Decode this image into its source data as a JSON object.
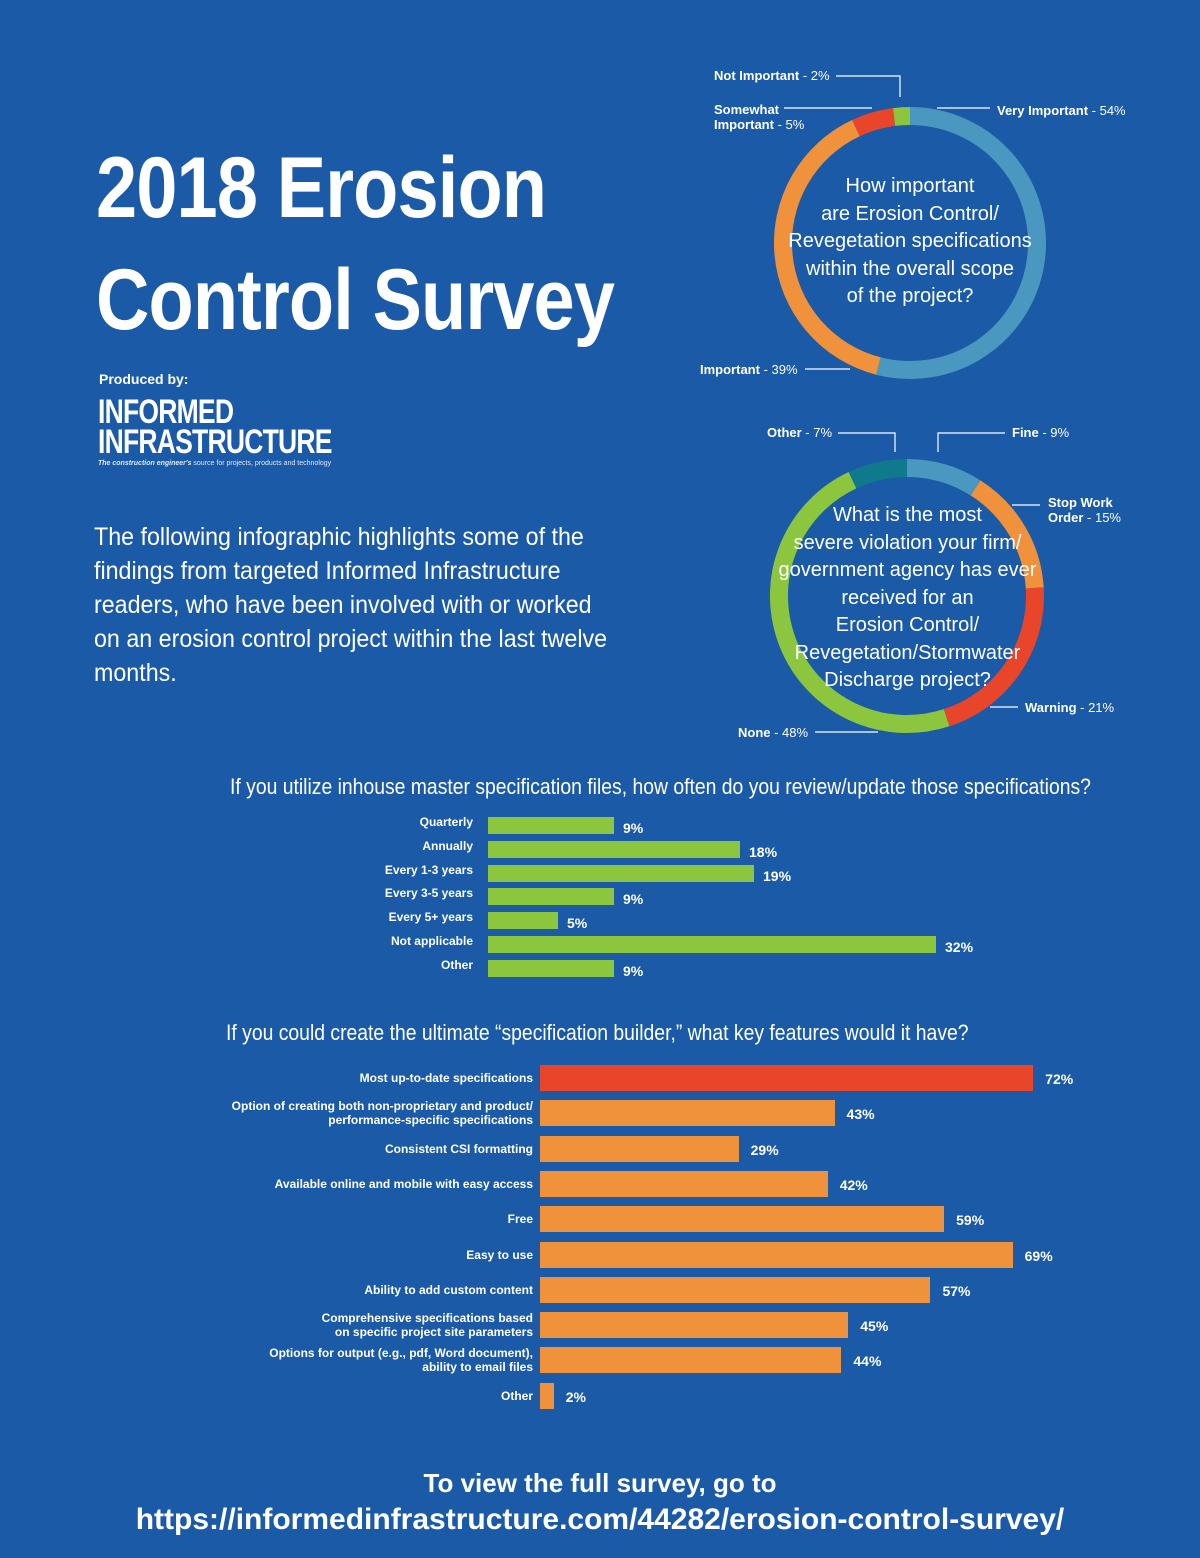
{
  "header": {
    "title_line1": "2018 Erosion",
    "title_line2": "Control Survey",
    "produced_by": "Produced by:",
    "logo_line1": "INFORMED",
    "logo_line2": "INFRASTRUCTURE",
    "logo_tagline_bold": "The construction engineer's",
    "logo_tagline_rest": " source for projects, products and technology"
  },
  "intro": "The following infographic highlights some of the findings from targeted Informed Infrastructure readers, who have been involved with or worked on an erosion control project within the last twelve months.",
  "footer": {
    "line1": "To view the full survey, go to",
    "url": "https://informedinfrastructure.com/44282/erosion-control-survey/"
  },
  "chart_data": [
    {
      "type": "pie",
      "question_lines": [
        "How important",
        "are Erosion Control/",
        "Revegetation specifications",
        "within the overall scope",
        "of the project?"
      ],
      "slices": [
        {
          "label": "Very Important",
          "value": 54,
          "display": " - 54%",
          "color": "#4a97bf"
        },
        {
          "label": "Important",
          "value": 39,
          "display": " - 39%",
          "color": "#f0913c"
        },
        {
          "label_lines": [
            "Somewhat",
            "Important"
          ],
          "value": 5,
          "display": " - 5%",
          "color": "#e8452b"
        },
        {
          "label": "Not Important",
          "value": 2,
          "display": " - 2%",
          "color": "#8cc63f"
        }
      ]
    },
    {
      "type": "pie",
      "question_lines": [
        "What is the most",
        "severe violation your firm/",
        "government agency has ever",
        "received for an",
        "Erosion Control/",
        "Revegetation/Stormwater",
        "Discharge project?"
      ],
      "slices": [
        {
          "label": "Fine",
          "value": 9,
          "display": " - 9%",
          "color": "#4a97bf"
        },
        {
          "label_lines": [
            "Stop Work",
            "Order"
          ],
          "value": 15,
          "display": " - 15%",
          "color": "#f0913c"
        },
        {
          "label": "Warning",
          "value": 21,
          "display": " - 21%",
          "color": "#e8452b"
        },
        {
          "label": "None",
          "value": 48,
          "display": " - 48%",
          "color": "#8cc63f"
        },
        {
          "label": "Other",
          "value": 7,
          "display": " - 7%",
          "color": "#0e7a8c"
        }
      ]
    },
    {
      "type": "bar",
      "title": "If you utilize inhouse master specification files, how often do you review/update those specifications?",
      "categories": [
        "Quarterly",
        "Annually",
        "Every 1-3 years",
        "Every 3-5 years",
        "Every 5+ years",
        "Not applicable",
        "Other"
      ],
      "values": [
        9,
        18,
        19,
        9,
        5,
        32,
        9
      ],
      "value_labels": [
        "9%",
        "18%",
        "19%",
        "9%",
        "5%",
        "32%",
        "9%"
      ],
      "color": "#8cc63f"
    },
    {
      "type": "bar",
      "title": "If you could create the ultimate “specification builder,” what key features would it have?",
      "categories": [
        [
          "Most up-to-date specifications"
        ],
        [
          "Option of creating both non-proprietary and product/",
          "performance-specific specifications"
        ],
        [
          "Consistent CSI formatting"
        ],
        [
          "Available online and mobile with easy access"
        ],
        [
          "Free"
        ],
        [
          "Easy to use"
        ],
        [
          "Ability to add custom content"
        ],
        [
          "Comprehensive specifications based",
          "on specific project site parameters"
        ],
        [
          "Options for output (e.g., pdf, Word document),",
          "ability to email files"
        ],
        [
          "Other"
        ]
      ],
      "values": [
        72,
        43,
        29,
        42,
        59,
        69,
        57,
        45,
        44,
        2
      ],
      "value_labels": [
        "72%",
        "43%",
        "29%",
        "42%",
        "59%",
        "69%",
        "57%",
        "45%",
        "44%",
        "2%"
      ],
      "color": "#f0913c",
      "highlight_color": "#e8452b"
    }
  ]
}
